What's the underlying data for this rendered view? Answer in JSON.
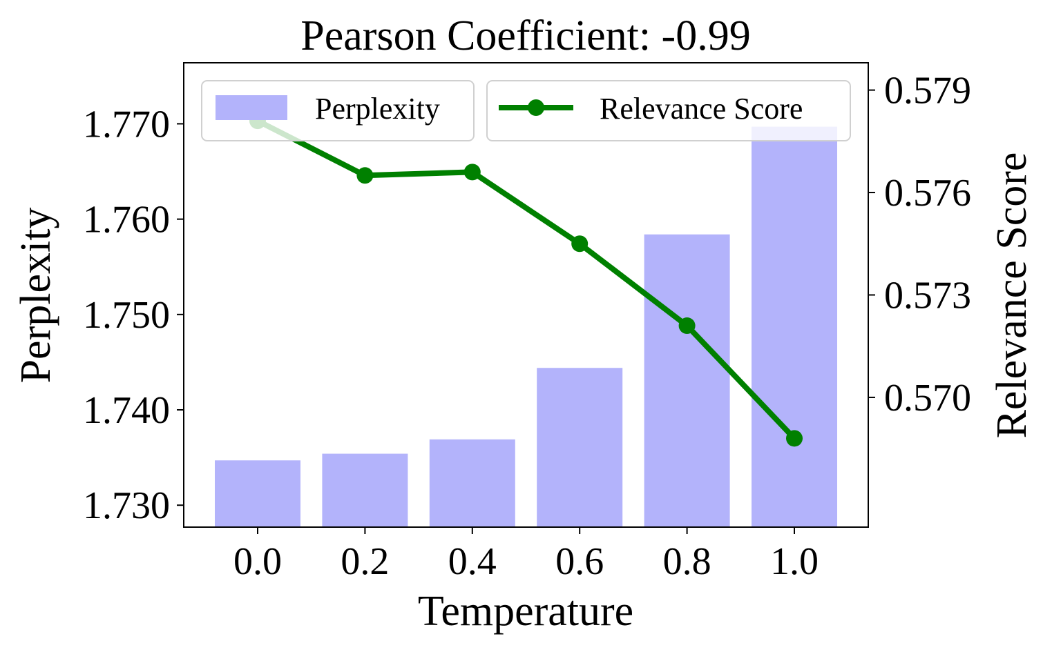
{
  "chart_data": {
    "type": "bar",
    "title": "Pearson Coefficient: -0.99",
    "xlabel": "Temperature",
    "ylabel": "Perplexity",
    "y2label": "Relevance Score",
    "categories": [
      "0.0",
      "0.2",
      "0.4",
      "0.6",
      "0.8",
      "1.0"
    ],
    "x": [
      0.0,
      0.2,
      0.4,
      0.6,
      0.8,
      1.0
    ],
    "series": [
      {
        "name": "Perplexity",
        "type": "bar",
        "axis": "left",
        "color": "#b3b3fb",
        "values": [
          1.7347,
          1.7354,
          1.7369,
          1.7444,
          1.7584,
          1.7697
        ]
      },
      {
        "name": "Relevance Score",
        "type": "line",
        "axis": "right",
        "color": "#008000",
        "marker": "circle",
        "values": [
          0.5781,
          0.5765,
          0.5766,
          0.5745,
          0.5721,
          0.5688
        ]
      }
    ],
    "ylim": [
      1.7277,
      1.7764
    ],
    "yticks": [
      "1.730",
      "1.740",
      "1.750",
      "1.760",
      "1.770"
    ],
    "y2lim": [
      0.5662,
      0.5798
    ],
    "y2ticks": [
      "0.570",
      "0.573",
      "0.576",
      "0.579"
    ],
    "legend": "top"
  }
}
